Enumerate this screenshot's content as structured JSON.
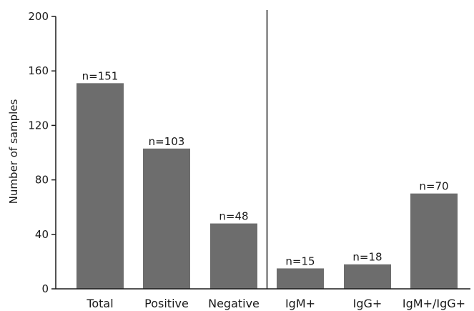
{
  "chart_data": {
    "type": "bar",
    "categories": [
      "Total",
      "Positive",
      "Negative",
      "IgM+",
      "IgG+",
      "IgM+/IgG+"
    ],
    "values": [
      151,
      103,
      48,
      15,
      18,
      70
    ],
    "data_labels": [
      "n=151",
      "n=103",
      "n=48",
      "n=15",
      "n=18",
      "n=70"
    ],
    "title": "",
    "xlabel": "",
    "ylabel": "Number of samples",
    "ylim": [
      0,
      200
    ],
    "yticks": [
      "0",
      "40",
      "80",
      "120",
      "160",
      "200"
    ],
    "group_divider_after_index": 2,
    "bar_color": "#6d6d6d",
    "grid": false,
    "legend": "none"
  }
}
